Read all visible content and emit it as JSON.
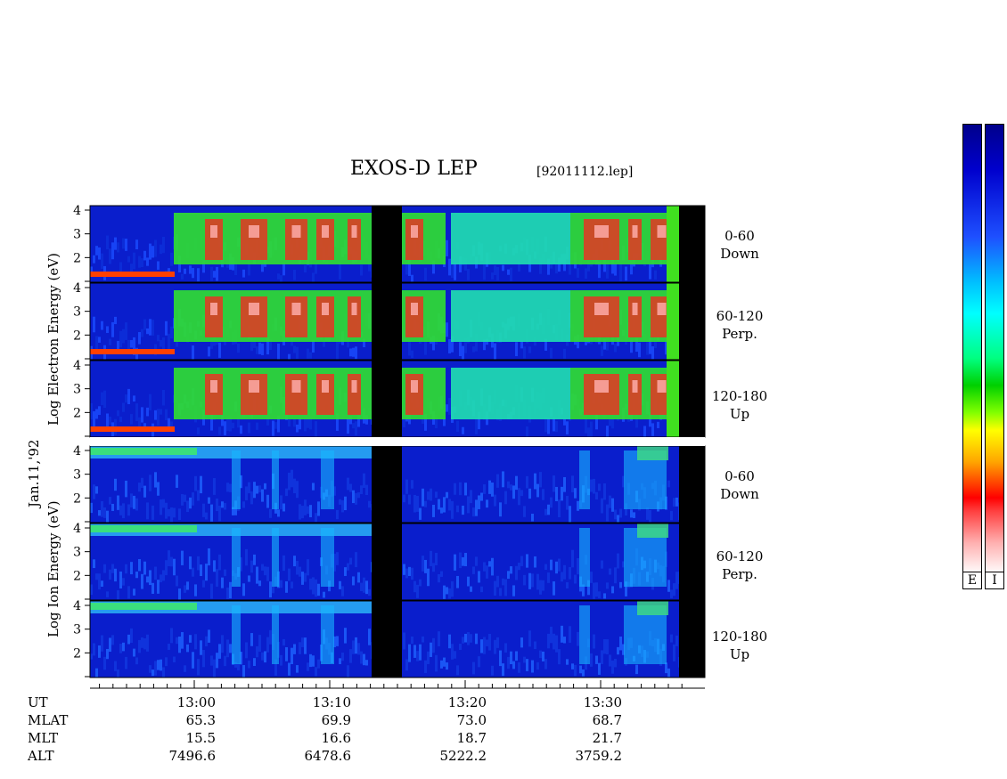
{
  "title": "EXOS-D LEP",
  "file": "[92011112.lep]",
  "date": "Jan.11,'92",
  "chart_data": {
    "type": "heatmap",
    "instrument": "EXOS-D LEP",
    "ylabel_electron": "Log Electron Energy (eV)",
    "ylabel_ion": "Log Ion Energy (eV)",
    "ylim": [
      1,
      4
    ],
    "y_ticks": [
      "4",
      "3",
      "2"
    ],
    "panels": [
      {
        "species": "Electron",
        "range": "0-60",
        "direction": "Down"
      },
      {
        "species": "Electron",
        "range": "60-120",
        "direction": "Perp."
      },
      {
        "species": "Electron",
        "range": "120-180",
        "direction": "Up"
      },
      {
        "species": "Ion",
        "range": "0-60",
        "direction": "Down"
      },
      {
        "species": "Ion",
        "range": "60-120",
        "direction": "Perp."
      },
      {
        "species": "Ion",
        "range": "120-180",
        "direction": "Up"
      }
    ],
    "x_axis": {
      "rows": [
        "UT",
        "MLAT",
        "MLT",
        "ALT"
      ],
      "ticks": [
        {
          "UT": "13:00",
          "MLAT": "65.3",
          "MLT": "15.5",
          "ALT": "7496.6"
        },
        {
          "UT": "13:10",
          "MLAT": "69.9",
          "MLT": "16.6",
          "ALT": "6478.6"
        },
        {
          "UT": "13:20",
          "MLAT": "73.0",
          "MLT": "18.7",
          "ALT": "5222.2"
        },
        {
          "UT": "13:30",
          "MLAT": "68.7",
          "MLT": "21.7",
          "ALT": "3759.2"
        }
      ]
    },
    "data_gap_ut": [
      "13:12",
      "13:14"
    ],
    "colorbar_labels": [
      "E",
      "I"
    ]
  }
}
